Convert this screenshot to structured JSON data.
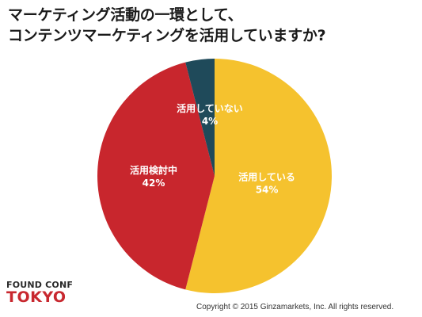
{
  "chart_data": {
    "type": "pie",
    "title": "マーケティング活動の一環として、\nコンテンツマーケティングを活用していますか?",
    "title_lines": [
      "マーケティング活動の一環として、",
      "コンテンツマーケティングを活用していますか?"
    ],
    "categories": [
      "活用している",
      "活用検討中",
      "活用していない"
    ],
    "values": [
      54,
      42,
      4
    ],
    "labels": [
      "54%",
      "42%",
      "4%"
    ],
    "colors": [
      "#f5c22e",
      "#c8262d",
      "#1f4a5a"
    ],
    "start": "12 o'clock",
    "direction": "clockwise",
    "legend": "none"
  },
  "logo": {
    "line1": "FOUND CONF",
    "line2": "TOKYO"
  },
  "copyright": "Copyright © 2015 Ginzamarkets, Inc. All rights reserved."
}
